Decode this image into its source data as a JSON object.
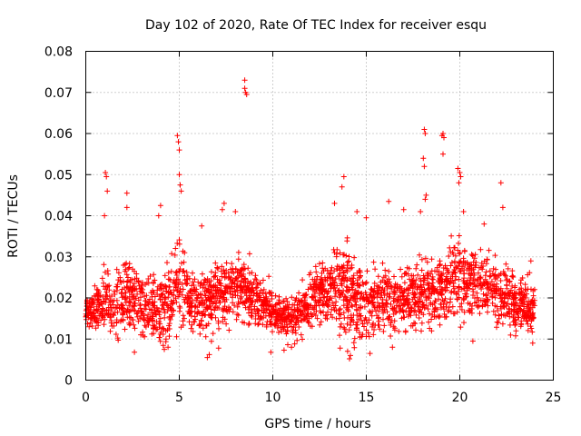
{
  "chart_data": {
    "type": "scatter",
    "title": "Day 102 of 2020, Rate Of TEC Index for receiver esqu",
    "xlabel": "GPS time / hours",
    "ylabel": "ROTI / TECUs",
    "xlim": [
      0,
      25
    ],
    "ylim": [
      0,
      0.08
    ],
    "xticks": [
      0,
      5,
      10,
      15,
      20,
      25
    ],
    "xtick_labels": [
      "0",
      "5",
      "10",
      "15",
      "20",
      "25"
    ],
    "yticks": [
      0,
      0.01,
      0.02,
      0.03,
      0.04,
      0.05,
      0.06,
      0.07,
      0.08
    ],
    "ytick_labels": [
      "0",
      "0.01",
      "0.02",
      "0.03",
      "0.04",
      "0.05",
      "0.06",
      "0.07",
      "0.08"
    ],
    "grid": true,
    "marker": "plus",
    "color": "#ff0000",
    "series": [
      {
        "name": "ROTI",
        "envelope": {
          "hours": [
            0,
            0.5,
            1,
            1.5,
            2,
            2.5,
            3,
            3.5,
            4,
            4.5,
            5,
            5.5,
            6,
            6.5,
            7,
            7.5,
            8,
            8.5,
            9,
            9.5,
            10,
            10.5,
            11,
            11.5,
            12,
            12.5,
            13,
            13.5,
            14,
            14.5,
            15,
            15.5,
            16,
            16.5,
            17,
            17.5,
            18,
            18.5,
            19,
            19.5,
            20,
            20.5,
            21,
            21.5,
            22,
            22.5,
            23,
            23.5,
            24
          ],
          "low": [
            0.011,
            0.01,
            0.01,
            0.009,
            0.009,
            0.01,
            0.01,
            0.011,
            0.008,
            0.009,
            0.01,
            0.01,
            0.009,
            0.008,
            0.008,
            0.009,
            0.01,
            0.009,
            0.01,
            0.009,
            0.009,
            0.008,
            0.008,
            0.009,
            0.009,
            0.01,
            0.01,
            0.009,
            0.007,
            0.006,
            0.008,
            0.009,
            0.01,
            0.01,
            0.01,
            0.01,
            0.011,
            0.011,
            0.012,
            0.012,
            0.012,
            0.011,
            0.011,
            0.012,
            0.012,
            0.011,
            0.01,
            0.01,
            0.009
          ],
          "typical": [
            0.017,
            0.017,
            0.018,
            0.018,
            0.02,
            0.02,
            0.019,
            0.018,
            0.017,
            0.02,
            0.023,
            0.02,
            0.018,
            0.019,
            0.021,
            0.022,
            0.023,
            0.022,
            0.02,
            0.018,
            0.016,
            0.015,
            0.015,
            0.016,
            0.019,
            0.021,
            0.022,
            0.022,
            0.021,
            0.019,
            0.019,
            0.019,
            0.019,
            0.019,
            0.019,
            0.02,
            0.021,
            0.021,
            0.022,
            0.024,
            0.025,
            0.024,
            0.023,
            0.022,
            0.021,
            0.02,
            0.019,
            0.018,
            0.017
          ],
          "high": [
            0.024,
            0.025,
            0.033,
            0.035,
            0.034,
            0.032,
            0.033,
            0.034,
            0.036,
            0.035,
            0.047,
            0.034,
            0.029,
            0.032,
            0.035,
            0.034,
            0.036,
            0.032,
            0.03,
            0.027,
            0.024,
            0.025,
            0.026,
            0.028,
            0.031,
            0.033,
            0.035,
            0.039,
            0.039,
            0.036,
            0.034,
            0.033,
            0.034,
            0.034,
            0.034,
            0.034,
            0.036,
            0.034,
            0.036,
            0.038,
            0.04,
            0.037,
            0.034,
            0.033,
            0.035,
            0.033,
            0.031,
            0.029,
            0.027
          ]
        },
        "points_per_hour": 110,
        "spikes": [
          [
            1.05,
            0.0505
          ],
          [
            1.1,
            0.0495
          ],
          [
            1.15,
            0.046
          ],
          [
            1.0,
            0.04
          ],
          [
            2.2,
            0.0455
          ],
          [
            2.2,
            0.042
          ],
          [
            4.9,
            0.0595
          ],
          [
            4.95,
            0.058
          ],
          [
            5.0,
            0.056
          ],
          [
            5.0,
            0.05
          ],
          [
            5.05,
            0.0475
          ],
          [
            5.1,
            0.046
          ],
          [
            4.0,
            0.0425
          ],
          [
            3.9,
            0.04
          ],
          [
            6.2,
            0.0375
          ],
          [
            7.4,
            0.043
          ],
          [
            7.3,
            0.0415
          ],
          [
            8.0,
            0.041
          ],
          [
            8.5,
            0.073
          ],
          [
            8.5,
            0.071
          ],
          [
            8.55,
            0.07
          ],
          [
            8.6,
            0.0695
          ],
          [
            13.3,
            0.043
          ],
          [
            13.8,
            0.0495
          ],
          [
            13.7,
            0.047
          ],
          [
            14.5,
            0.041
          ],
          [
            15.0,
            0.0395
          ],
          [
            16.2,
            0.0435
          ],
          [
            17.0,
            0.0415
          ],
          [
            17.9,
            0.041
          ],
          [
            18.1,
            0.061
          ],
          [
            18.15,
            0.06
          ],
          [
            18.05,
            0.054
          ],
          [
            18.1,
            0.052
          ],
          [
            18.2,
            0.045
          ],
          [
            18.15,
            0.044
          ],
          [
            19.1,
            0.06
          ],
          [
            19.05,
            0.0595
          ],
          [
            19.15,
            0.059
          ],
          [
            19.1,
            0.055
          ],
          [
            19.9,
            0.0515
          ],
          [
            20.0,
            0.0505
          ],
          [
            20.05,
            0.0495
          ],
          [
            19.95,
            0.048
          ],
          [
            20.2,
            0.041
          ],
          [
            22.2,
            0.048
          ],
          [
            22.3,
            0.042
          ],
          [
            21.3,
            0.038
          ],
          [
            23.8,
            0.029
          ]
        ],
        "dips": [
          [
            2.6,
            0.0068
          ],
          [
            4.2,
            0.0075
          ],
          [
            4.4,
            0.008
          ],
          [
            6.5,
            0.0055
          ],
          [
            6.6,
            0.0062
          ],
          [
            7.1,
            0.0078
          ],
          [
            9.9,
            0.0068
          ],
          [
            10.6,
            0.0073
          ],
          [
            11.0,
            0.008
          ],
          [
            13.6,
            0.0078
          ],
          [
            14.1,
            0.0052
          ],
          [
            14.15,
            0.006
          ],
          [
            14.0,
            0.007
          ],
          [
            15.2,
            0.0065
          ],
          [
            16.4,
            0.008
          ],
          [
            20.7,
            0.0095
          ],
          [
            23.9,
            0.009
          ]
        ]
      }
    ]
  }
}
